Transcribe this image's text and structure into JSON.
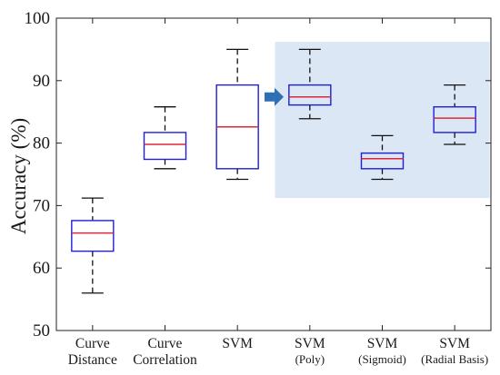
{
  "chart_data": {
    "type": "boxplot",
    "title": "",
    "xlabel": "",
    "ylabel": "Accuracy (%)",
    "ylim": [
      50,
      100
    ],
    "yticks": [
      50,
      60,
      70,
      80,
      90,
      100
    ],
    "grid": false,
    "colors": {
      "box_stroke": "#1f1fd6",
      "median": "#e0263a",
      "whisker": "#111111",
      "highlight_fill": "#dbe7f5",
      "arrow": "#2f6fb5"
    },
    "categories": [
      {
        "line1": "Curve",
        "line2": "Distance"
      },
      {
        "line1": "Curve",
        "line2": "Correlation"
      },
      {
        "line1": "SVM",
        "line2": ""
      },
      {
        "line1": "SVM",
        "line2": "(Poly)"
      },
      {
        "line1": "SVM",
        "line2": "(Sigmoid)"
      },
      {
        "line1": "SVM",
        "line2": "(Radial Basis)"
      }
    ],
    "boxes": [
      {
        "min": 56.0,
        "q1": 62.7,
        "median": 65.6,
        "q3": 67.6,
        "max": 71.2
      },
      {
        "min": 75.9,
        "q1": 77.4,
        "median": 79.8,
        "q3": 81.7,
        "max": 85.8
      },
      {
        "min": 74.2,
        "q1": 75.9,
        "median": 82.6,
        "q3": 89.3,
        "max": 95.0
      },
      {
        "min": 83.9,
        "q1": 86.1,
        "median": 87.4,
        "q3": 89.3,
        "max": 95.0
      },
      {
        "min": 74.2,
        "q1": 75.9,
        "median": 77.5,
        "q3": 78.4,
        "max": 81.2
      },
      {
        "min": 79.8,
        "q1": 81.7,
        "median": 84.0,
        "q3": 85.8,
        "max": 89.3
      }
    ],
    "highlight": {
      "from_category": 3,
      "to_category": 5,
      "y_from": 71.2,
      "y_to": 96.2
    },
    "annotation": {
      "type": "arrow",
      "at": "between SVM and SVM (Poly)",
      "direction": "right",
      "y": 87.4
    }
  }
}
